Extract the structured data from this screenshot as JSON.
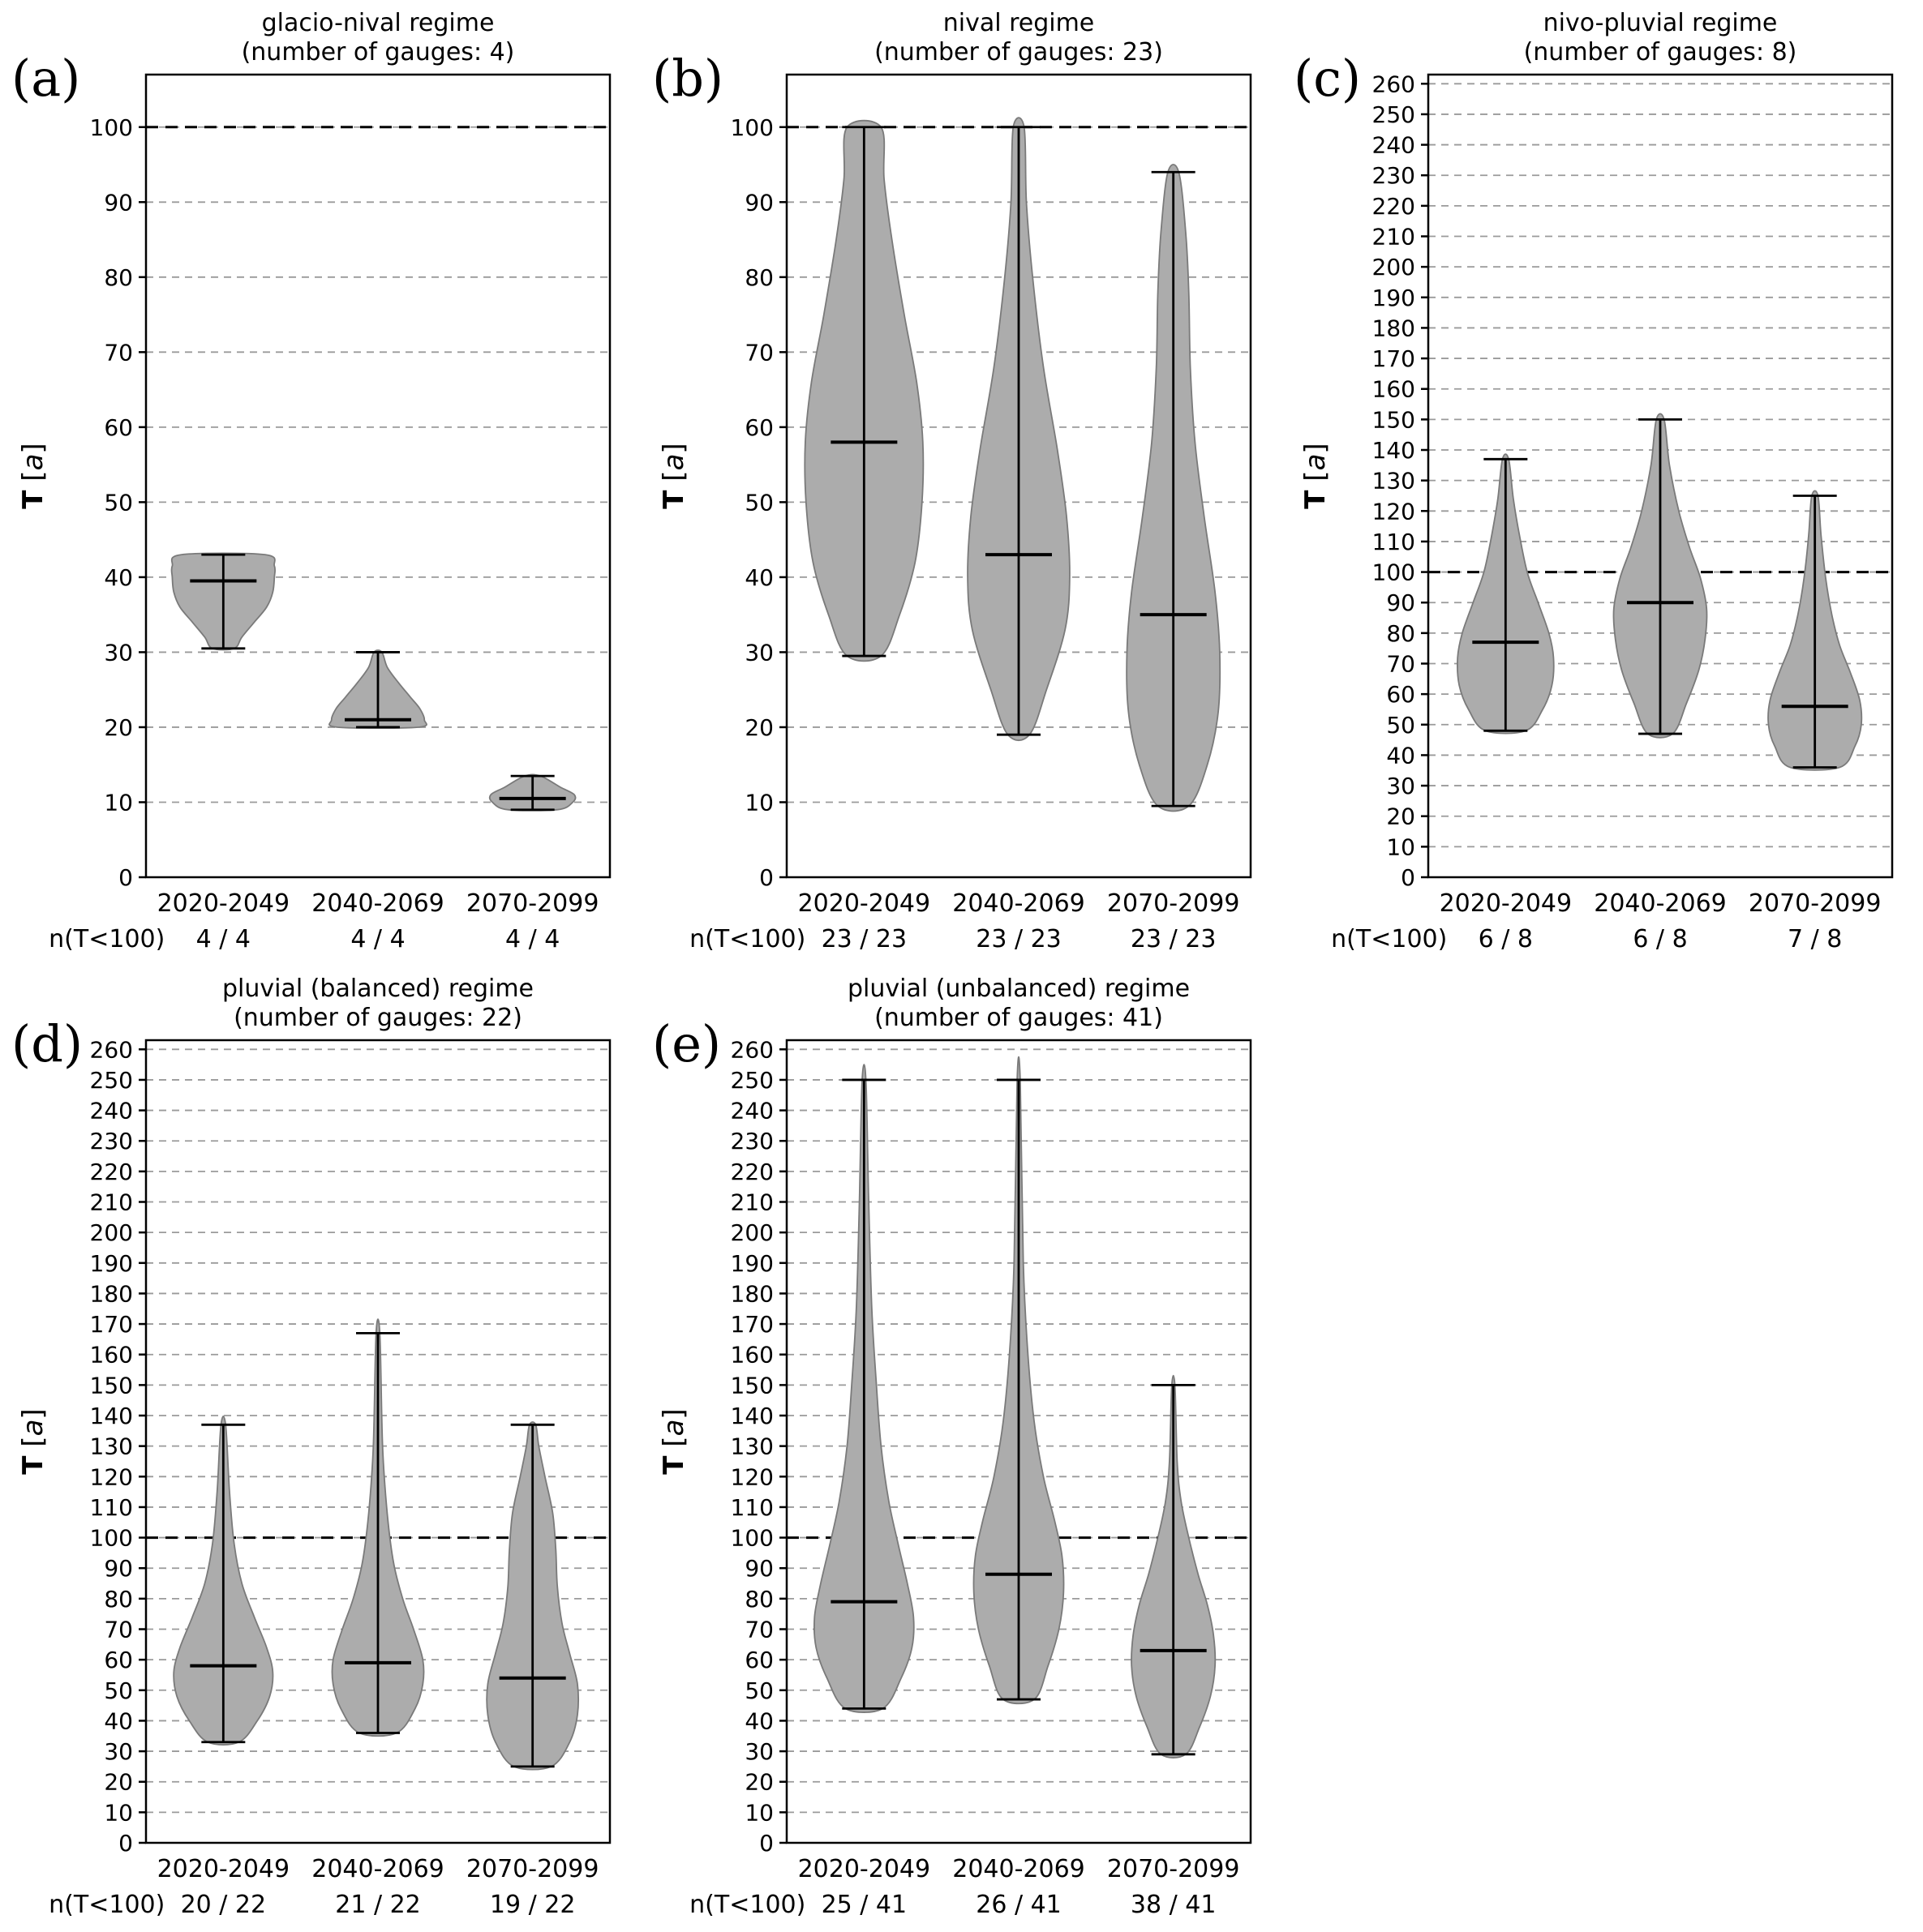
{
  "figure": {
    "background": "#ffffff",
    "ylabel": "T [a]",
    "n_label": "n(T<100)",
    "colors": {
      "violin_fill": "#acacac",
      "violin_edge": "#7a7a7a",
      "grid": "#9a9a9a",
      "axis": "#000000",
      "reference": "#000000"
    }
  },
  "chart_data": [
    {
      "type": "violin",
      "panel_label": "(a)",
      "title": "glacio-nival regime",
      "subtitle": "(number of gauges: 4)",
      "categories": [
        "2020-2049",
        "2040-2069",
        "2070-2099"
      ],
      "ylim": [
        0,
        107
      ],
      "ytick_max": 100,
      "ytick_step": 10,
      "reference_line": 100,
      "grid": true,
      "n_counts": [
        "4 / 4",
        "4 / 4",
        "4 / 4"
      ],
      "violins": [
        {
          "min": 30.5,
          "median": 39.5,
          "max": 43,
          "profile": [
            [
              30.5,
              0.07
            ],
            [
              32,
              0.12
            ],
            [
              34,
              0.2
            ],
            [
              36,
              0.28
            ],
            [
              38,
              0.32
            ],
            [
              40,
              0.33
            ],
            [
              41.5,
              0.33
            ],
            [
              43,
              0.27
            ]
          ]
        },
        {
          "min": 20,
          "median": 21,
          "max": 30,
          "profile": [
            [
              20,
              0.26
            ],
            [
              21,
              0.3
            ],
            [
              22.5,
              0.27
            ],
            [
              24,
              0.21
            ],
            [
              26,
              0.13
            ],
            [
              28,
              0.06
            ],
            [
              30,
              0.025
            ]
          ]
        },
        {
          "min": 9,
          "median": 10.5,
          "max": 13.5,
          "profile": [
            [
              9,
              0.16
            ],
            [
              10,
              0.26
            ],
            [
              11,
              0.27
            ],
            [
              12,
              0.18
            ],
            [
              13.5,
              0.05
            ]
          ]
        }
      ]
    },
    {
      "type": "violin",
      "panel_label": "(b)",
      "title": "nival regime",
      "subtitle": "(number of gauges: 23)",
      "categories": [
        "2020-2049",
        "2040-2069",
        "2070-2099"
      ],
      "ylim": [
        0,
        107
      ],
      "ytick_max": 100,
      "ytick_step": 10,
      "reference_line": 100,
      "grid": true,
      "n_counts": [
        "23 / 23",
        "23 / 23",
        "23 / 23"
      ],
      "violins": [
        {
          "min": 29.5,
          "median": 58,
          "max": 100,
          "profile": [
            [
              29.5,
              0.11
            ],
            [
              35,
              0.23
            ],
            [
              42,
              0.33
            ],
            [
              50,
              0.375
            ],
            [
              58,
              0.38
            ],
            [
              66,
              0.34
            ],
            [
              75,
              0.26
            ],
            [
              85,
              0.18
            ],
            [
              93,
              0.13
            ],
            [
              100,
              0.11
            ]
          ]
        },
        {
          "min": 19,
          "median": 43,
          "max": 100,
          "profile": [
            [
              19,
              0.07
            ],
            [
              25,
              0.18
            ],
            [
              33,
              0.3
            ],
            [
              40,
              0.33
            ],
            [
              48,
              0.31
            ],
            [
              57,
              0.25
            ],
            [
              68,
              0.16
            ],
            [
              80,
              0.09
            ],
            [
              90,
              0.05
            ],
            [
              100,
              0.035
            ]
          ]
        },
        {
          "min": 9.5,
          "median": 35,
          "max": 94,
          "profile": [
            [
              9.5,
              0.1
            ],
            [
              15,
              0.22
            ],
            [
              22,
              0.29
            ],
            [
              30,
              0.3
            ],
            [
              38,
              0.27
            ],
            [
              48,
              0.2
            ],
            [
              58,
              0.14
            ],
            [
              68,
              0.11
            ],
            [
              78,
              0.1
            ],
            [
              86,
              0.08
            ],
            [
              94,
              0.035
            ]
          ]
        }
      ]
    },
    {
      "type": "violin",
      "panel_label": "(c)",
      "title": "nivo-pluvial regime",
      "subtitle": "(number of gauges: 8)",
      "categories": [
        "2020-2049",
        "2040-2069",
        "2070-2099"
      ],
      "ylim": [
        0,
        263
      ],
      "ytick_max": 260,
      "ytick_step": 10,
      "reference_line": 100,
      "grid": true,
      "n_counts": [
        "6 / 8",
        "6 / 8",
        "7 / 8"
      ],
      "violins": [
        {
          "min": 48,
          "median": 77,
          "max": 137,
          "profile": [
            [
              48,
              0.13
            ],
            [
              55,
              0.24
            ],
            [
              63,
              0.3
            ],
            [
              72,
              0.31
            ],
            [
              80,
              0.28
            ],
            [
              90,
              0.21
            ],
            [
              100,
              0.14
            ],
            [
              112,
              0.09
            ],
            [
              124,
              0.05
            ],
            [
              137,
              0.02
            ]
          ]
        },
        {
          "min": 47,
          "median": 90,
          "max": 150,
          "profile": [
            [
              47,
              0.08
            ],
            [
              57,
              0.17
            ],
            [
              68,
              0.25
            ],
            [
              78,
              0.29
            ],
            [
              88,
              0.3
            ],
            [
              98,
              0.26
            ],
            [
              108,
              0.19
            ],
            [
              120,
              0.12
            ],
            [
              135,
              0.06
            ],
            [
              150,
              0.025
            ]
          ]
        },
        {
          "min": 36,
          "median": 56,
          "max": 125,
          "profile": [
            [
              36,
              0.16
            ],
            [
              43,
              0.26
            ],
            [
              50,
              0.3
            ],
            [
              58,
              0.29
            ],
            [
              67,
              0.23
            ],
            [
              76,
              0.16
            ],
            [
              86,
              0.11
            ],
            [
              98,
              0.07
            ],
            [
              112,
              0.04
            ],
            [
              125,
              0.02
            ]
          ]
        }
      ]
    },
    {
      "type": "violin",
      "panel_label": "(d)",
      "title": "pluvial (balanced) regime",
      "subtitle": "(number of gauges: 22)",
      "categories": [
        "2020-2049",
        "2040-2069",
        "2070-2099"
      ],
      "ylim": [
        0,
        263
      ],
      "ytick_max": 260,
      "ytick_step": 10,
      "reference_line": 100,
      "grid": true,
      "n_counts": [
        "20 / 22",
        "21 / 22",
        "19 / 22"
      ],
      "violins": [
        {
          "min": 33,
          "median": 58,
          "max": 137,
          "profile": [
            [
              33,
              0.1
            ],
            [
              40,
              0.22
            ],
            [
              48,
              0.3
            ],
            [
              56,
              0.32
            ],
            [
              64,
              0.28
            ],
            [
              74,
              0.2
            ],
            [
              85,
              0.12
            ],
            [
              98,
              0.07
            ],
            [
              115,
              0.04
            ],
            [
              137,
              0.015
            ]
          ]
        },
        {
          "min": 36,
          "median": 59,
          "max": 167,
          "profile": [
            [
              36,
              0.12
            ],
            [
              44,
              0.24
            ],
            [
              52,
              0.29
            ],
            [
              60,
              0.29
            ],
            [
              70,
              0.23
            ],
            [
              80,
              0.16
            ],
            [
              92,
              0.1
            ],
            [
              108,
              0.06
            ],
            [
              130,
              0.03
            ],
            [
              167,
              0.012
            ]
          ]
        },
        {
          "min": 25,
          "median": 54,
          "max": 137,
          "profile": [
            [
              25,
              0.12
            ],
            [
              33,
              0.24
            ],
            [
              42,
              0.29
            ],
            [
              52,
              0.29
            ],
            [
              62,
              0.24
            ],
            [
              72,
              0.19
            ],
            [
              84,
              0.16
            ],
            [
              96,
              0.15
            ],
            [
              108,
              0.13
            ],
            [
              120,
              0.08
            ],
            [
              130,
              0.04
            ],
            [
              137,
              0.02
            ]
          ]
        }
      ]
    },
    {
      "type": "violin",
      "panel_label": "(e)",
      "title": "pluvial (unbalanced) regime",
      "subtitle": "(number of gauges: 41)",
      "categories": [
        "2020-2049",
        "2040-2069",
        "2070-2099"
      ],
      "ylim": [
        0,
        263
      ],
      "ytick_max": 260,
      "ytick_step": 10,
      "reference_line": 100,
      "grid": true,
      "n_counts": [
        "25 / 41",
        "26 / 41",
        "38 / 41"
      ],
      "violins": [
        {
          "min": 44,
          "median": 79,
          "max": 250,
          "profile": [
            [
              44,
              0.12
            ],
            [
              54,
              0.24
            ],
            [
              64,
              0.31
            ],
            [
              74,
              0.32
            ],
            [
              85,
              0.28
            ],
            [
              98,
              0.22
            ],
            [
              112,
              0.16
            ],
            [
              130,
              0.11
            ],
            [
              150,
              0.08
            ],
            [
              175,
              0.05
            ],
            [
              210,
              0.03
            ],
            [
              250,
              0.012
            ]
          ]
        },
        {
          "min": 47,
          "median": 88,
          "max": 250,
          "profile": [
            [
              47,
              0.1
            ],
            [
              58,
              0.19
            ],
            [
              70,
              0.26
            ],
            [
              82,
              0.29
            ],
            [
              94,
              0.28
            ],
            [
              106,
              0.23
            ],
            [
              120,
              0.16
            ],
            [
              138,
              0.1
            ],
            [
              160,
              0.06
            ],
            [
              190,
              0.03
            ],
            [
              250,
              0.01
            ]
          ]
        },
        {
          "min": 29,
          "median": 63,
          "max": 150,
          "profile": [
            [
              29,
              0.08
            ],
            [
              38,
              0.17
            ],
            [
              48,
              0.24
            ],
            [
              58,
              0.27
            ],
            [
              68,
              0.26
            ],
            [
              78,
              0.22
            ],
            [
              88,
              0.16
            ],
            [
              100,
              0.1
            ],
            [
              112,
              0.05
            ],
            [
              125,
              0.025
            ],
            [
              150,
              0.01
            ]
          ]
        }
      ]
    }
  ]
}
